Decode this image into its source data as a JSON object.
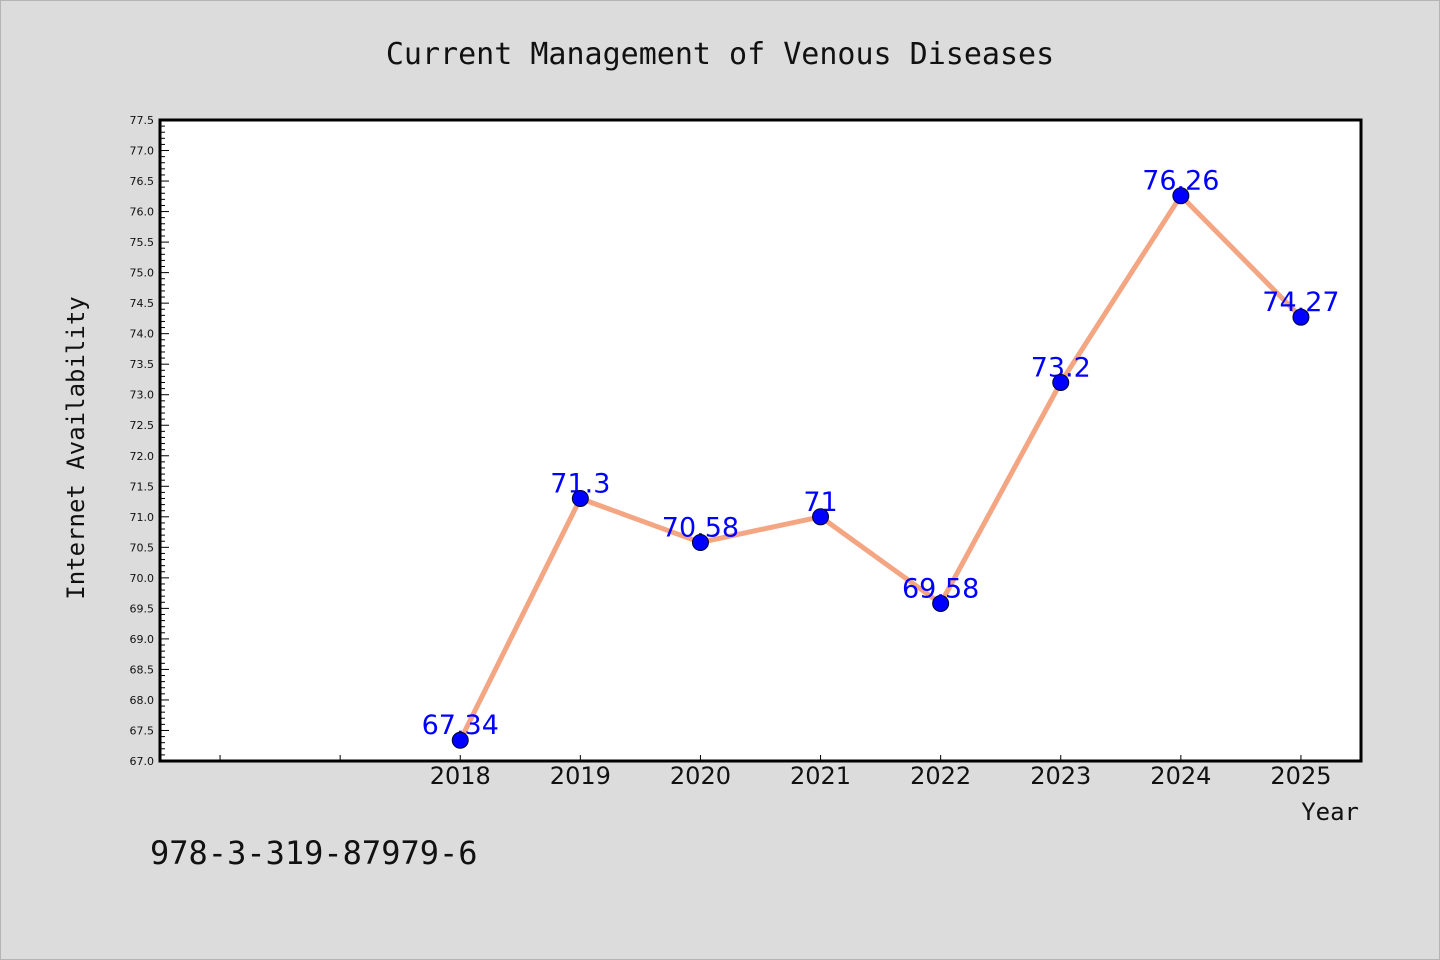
{
  "chart_data": {
    "type": "line",
    "title": "Current Management of Venous Diseases",
    "xlabel": "Year",
    "ylabel": "Internet Availability",
    "footer_text": "978-3-319-87979-6",
    "x": [
      "2018",
      "2019",
      "2020",
      "2021",
      "2022",
      "2023",
      "2024",
      "2025"
    ],
    "series": [
      {
        "values": [
          67.34,
          71.3,
          70.58,
          71,
          69.58,
          73.2,
          76.26,
          74.27
        ],
        "data_labels": [
          "67.34",
          "71.3",
          "70.58",
          "71",
          "69.58",
          "73.2",
          "76.26",
          "74.27"
        ]
      }
    ],
    "ylim": [
      67.0,
      77.5
    ],
    "ytick_step": 0.5,
    "yminor_step": 0.1,
    "x_slots": 10,
    "x_first_slot": 2,
    "grid": false,
    "legend": "none",
    "colors": {
      "line": "#f4a582",
      "marker": "#0000ff",
      "data_label": "#0000ff",
      "plot_bg": "#ffffff",
      "figure_bg": "#dcdcdc"
    }
  }
}
